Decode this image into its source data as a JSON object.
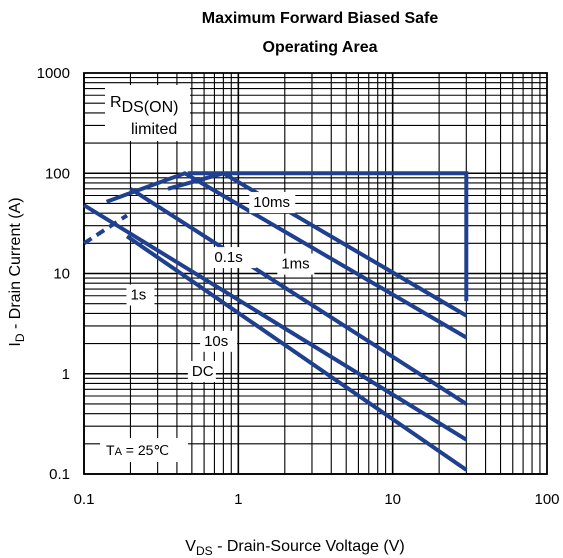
{
  "chart_data": {
    "type": "line",
    "title_line1": "Maximum Forward Biased Safe",
    "title_line2": "Operating Area",
    "xlabel_main": "V",
    "xlabel_sub": "DS",
    "xlabel_rest": " - Drain-Source Voltage (V)",
    "ylabel_main": "I",
    "ylabel_sub": "D",
    "ylabel_rest": " - Drain Current (A)",
    "x_scale": "log",
    "y_scale": "log",
    "xlim": [
      0.1,
      100
    ],
    "ylim": [
      0.1,
      1000
    ],
    "x_ticks": [
      0.1,
      1,
      10,
      100
    ],
    "x_tick_labels": [
      "0.1",
      "1",
      "10",
      "100"
    ],
    "y_ticks": [
      0.1,
      1,
      10,
      100,
      1000
    ],
    "y_tick_labels": [
      "0.1",
      "1",
      "10",
      "100",
      "1000"
    ],
    "grid": true,
    "line_color": "#1f3f8f",
    "rds_annotation": {
      "main": "R",
      "sub": "DS(ON)",
      "line2": "limited"
    },
    "ta_annotation": {
      "main": "T",
      "sub": "A",
      "rest": " = 25℃"
    },
    "series": [
      {
        "name": "1ms",
        "label_at": [
          1.9,
          11.2
        ],
        "points": [
          [
            0.47,
            100
          ],
          [
            30,
            100
          ],
          [
            30,
            5.3
          ]
        ]
      },
      {
        "name": "10ms",
        "label_at": [
          1.25,
          46
        ],
        "points": [
          [
            0.1,
            20
          ],
          [
            0.19,
            38
          ]
        ]
      },
      {
        "name": "10ms",
        "points": [
          [
            0.35,
            70
          ],
          [
            0.8,
            100
          ],
          [
            30,
            3.8
          ]
        ]
      },
      {
        "name": "0.1s",
        "label_at": [
          0.7,
          13
        ],
        "points": [
          [
            0.14,
            52
          ],
          [
            0.45,
            100
          ],
          [
            30,
            2.3
          ]
        ]
      },
      {
        "name": "1s",
        "label_at": [
          0.2,
          5.5
        ],
        "points": [
          [
            0.2,
            70
          ],
          [
            30,
            0.5
          ]
        ]
      },
      {
        "name": "10s",
        "label_at": [
          0.6,
          1.9
        ],
        "points": [
          [
            0.1,
            48
          ],
          [
            30,
            0.22
          ]
        ]
      },
      {
        "name": "DC",
        "label_at": [
          0.5,
          0.95
        ],
        "points": [
          [
            0.19,
            23.5
          ],
          [
            30,
            0.11
          ]
        ]
      }
    ]
  }
}
